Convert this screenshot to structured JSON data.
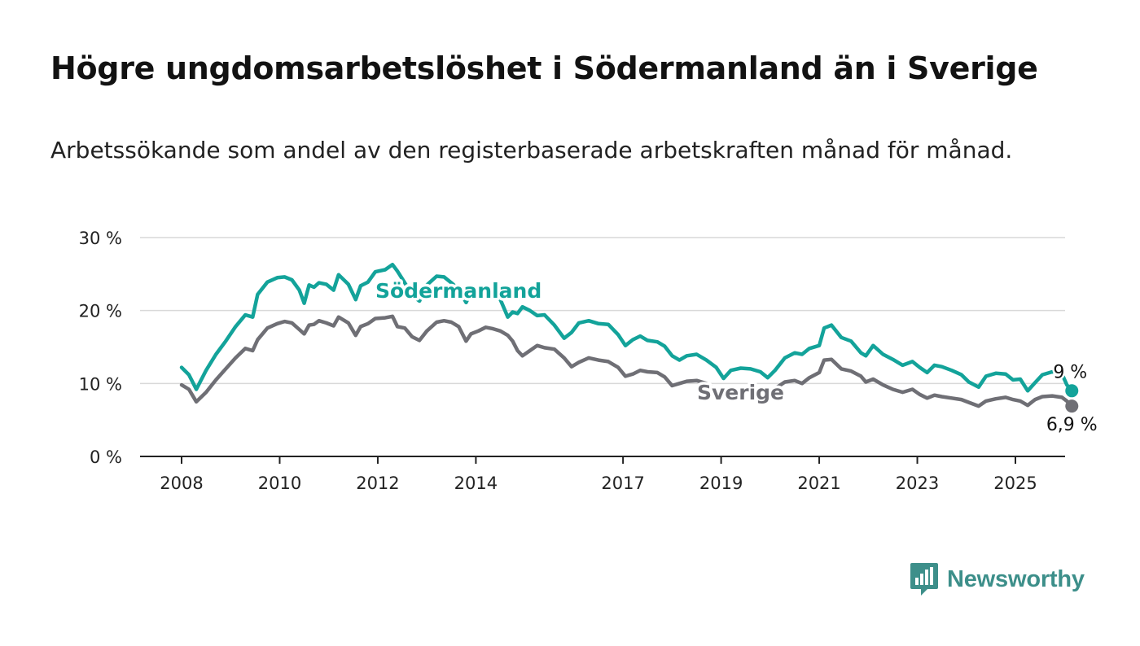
{
  "title": "Högre ungdomsarbetslöshet i Södermanland än i Sverige",
  "subtitle": "Arbetssökande som andel av den registerbaserade arbetskraften månad för månad.",
  "logo": {
    "text": "Newsworthy",
    "icon": "newsworthy-bar-chart-icon"
  },
  "colors": {
    "sodermanland": "#13a39a",
    "sverige": "#6f6f75",
    "grid": "#d9d9d9",
    "axis": "#222222"
  },
  "chart_data": {
    "type": "line",
    "ylim": [
      0,
      30
    ],
    "y_ticks": [
      {
        "value": 0,
        "label": "0 %"
      },
      {
        "value": 10,
        "label": "10 %"
      },
      {
        "value": 20,
        "label": "20 %"
      },
      {
        "value": 30,
        "label": "30 %"
      }
    ],
    "x_range": [
      2007.7,
      2026.2
    ],
    "x_ticks": [
      {
        "value": 2008,
        "label": "2008"
      },
      {
        "value": 2010,
        "label": "2010"
      },
      {
        "value": 2012,
        "label": "2012"
      },
      {
        "value": 2014,
        "label": "2014"
      },
      {
        "value": 2017,
        "label": "2017"
      },
      {
        "value": 2019,
        "label": "2019"
      },
      {
        "value": 2021,
        "label": "2021"
      },
      {
        "value": 2023,
        "label": "2023"
      },
      {
        "value": 2025,
        "label": "2025"
      }
    ],
    "series": [
      {
        "name": "Södermanland",
        "key": "sodermanland",
        "end_label": "9 %",
        "points": [
          [
            2008.0,
            12.2
          ],
          [
            2008.15,
            11.2
          ],
          [
            2008.3,
            9.2
          ],
          [
            2008.5,
            11.8
          ],
          [
            2008.7,
            14.0
          ],
          [
            2008.9,
            15.8
          ],
          [
            2009.1,
            17.8
          ],
          [
            2009.3,
            19.4
          ],
          [
            2009.45,
            19.1
          ],
          [
            2009.55,
            22.2
          ],
          [
            2009.75,
            23.9
          ],
          [
            2009.95,
            24.5
          ],
          [
            2010.1,
            24.6
          ],
          [
            2010.25,
            24.2
          ],
          [
            2010.4,
            22.8
          ],
          [
            2010.5,
            21.0
          ],
          [
            2010.6,
            23.5
          ],
          [
            2010.7,
            23.2
          ],
          [
            2010.8,
            23.8
          ],
          [
            2010.95,
            23.6
          ],
          [
            2011.1,
            22.8
          ],
          [
            2011.2,
            24.9
          ],
          [
            2011.4,
            23.6
          ],
          [
            2011.55,
            21.5
          ],
          [
            2011.65,
            23.4
          ],
          [
            2011.8,
            23.9
          ],
          [
            2011.95,
            25.3
          ],
          [
            2012.15,
            25.6
          ],
          [
            2012.3,
            26.3
          ],
          [
            2012.4,
            25.4
          ],
          [
            2012.55,
            23.8
          ],
          [
            2012.7,
            22.1
          ],
          [
            2012.85,
            21.3
          ],
          [
            2013.0,
            23.5
          ],
          [
            2013.2,
            24.7
          ],
          [
            2013.35,
            24.6
          ],
          [
            2013.5,
            23.8
          ],
          [
            2013.65,
            22.9
          ],
          [
            2013.8,
            21.1
          ],
          [
            2013.9,
            22.5
          ],
          [
            2014.05,
            22.7
          ],
          [
            2014.2,
            21.8
          ],
          [
            2014.35,
            22.2
          ],
          [
            2014.5,
            21.5
          ],
          [
            2014.65,
            19.1
          ],
          [
            2014.75,
            19.8
          ],
          [
            2014.85,
            19.6
          ],
          [
            2014.95,
            20.5
          ],
          [
            2015.1,
            20.0
          ],
          [
            2015.25,
            19.3
          ],
          [
            2015.4,
            19.4
          ],
          [
            2015.6,
            18.0
          ],
          [
            2015.8,
            16.2
          ],
          [
            2015.95,
            17.0
          ],
          [
            2016.1,
            18.3
          ],
          [
            2016.3,
            18.6
          ],
          [
            2016.5,
            18.2
          ],
          [
            2016.7,
            18.1
          ],
          [
            2016.9,
            16.7
          ],
          [
            2017.05,
            15.2
          ],
          [
            2017.2,
            16.0
          ],
          [
            2017.35,
            16.5
          ],
          [
            2017.5,
            15.9
          ],
          [
            2017.7,
            15.7
          ],
          [
            2017.85,
            15.1
          ],
          [
            2018.0,
            13.8
          ],
          [
            2018.15,
            13.2
          ],
          [
            2018.3,
            13.8
          ],
          [
            2018.5,
            14.0
          ],
          [
            2018.7,
            13.2
          ],
          [
            2018.9,
            12.2
          ],
          [
            2019.05,
            10.7
          ],
          [
            2019.2,
            11.8
          ],
          [
            2019.4,
            12.1
          ],
          [
            2019.6,
            12.0
          ],
          [
            2019.8,
            11.6
          ],
          [
            2019.95,
            10.8
          ],
          [
            2020.1,
            11.8
          ],
          [
            2020.3,
            13.5
          ],
          [
            2020.5,
            14.2
          ],
          [
            2020.65,
            14.0
          ],
          [
            2020.8,
            14.8
          ],
          [
            2021.0,
            15.2
          ],
          [
            2021.1,
            17.6
          ],
          [
            2021.25,
            18.0
          ],
          [
            2021.45,
            16.3
          ],
          [
            2021.65,
            15.8
          ],
          [
            2021.85,
            14.2
          ],
          [
            2021.95,
            13.8
          ],
          [
            2022.1,
            15.2
          ],
          [
            2022.3,
            14.0
          ],
          [
            2022.5,
            13.3
          ],
          [
            2022.7,
            12.5
          ],
          [
            2022.9,
            13.0
          ],
          [
            2023.05,
            12.2
          ],
          [
            2023.2,
            11.5
          ],
          [
            2023.35,
            12.5
          ],
          [
            2023.5,
            12.3
          ],
          [
            2023.7,
            11.8
          ],
          [
            2023.9,
            11.2
          ],
          [
            2024.05,
            10.2
          ],
          [
            2024.25,
            9.5
          ],
          [
            2024.4,
            11.0
          ],
          [
            2024.6,
            11.4
          ],
          [
            2024.8,
            11.3
          ],
          [
            2024.95,
            10.5
          ],
          [
            2025.1,
            10.6
          ],
          [
            2025.25,
            9.0
          ],
          [
            2025.4,
            10.1
          ],
          [
            2025.55,
            11.2
          ],
          [
            2025.75,
            11.6
          ],
          [
            2025.95,
            11.3
          ],
          [
            2026.05,
            9.8
          ],
          [
            2026.15,
            9.0
          ]
        ]
      },
      {
        "name": "Sverige",
        "key": "sverige",
        "end_label": "6,9 %",
        "points": [
          [
            2008.0,
            9.8
          ],
          [
            2008.15,
            9.2
          ],
          [
            2008.3,
            7.5
          ],
          [
            2008.5,
            8.8
          ],
          [
            2008.7,
            10.5
          ],
          [
            2008.9,
            12.0
          ],
          [
            2009.1,
            13.5
          ],
          [
            2009.3,
            14.8
          ],
          [
            2009.45,
            14.5
          ],
          [
            2009.55,
            16.0
          ],
          [
            2009.75,
            17.6
          ],
          [
            2009.95,
            18.2
          ],
          [
            2010.1,
            18.5
          ],
          [
            2010.25,
            18.3
          ],
          [
            2010.4,
            17.4
          ],
          [
            2010.5,
            16.8
          ],
          [
            2010.6,
            18.0
          ],
          [
            2010.7,
            18.1
          ],
          [
            2010.8,
            18.6
          ],
          [
            2010.95,
            18.3
          ],
          [
            2011.1,
            17.9
          ],
          [
            2011.2,
            19.1
          ],
          [
            2011.4,
            18.3
          ],
          [
            2011.55,
            16.6
          ],
          [
            2011.65,
            17.8
          ],
          [
            2011.8,
            18.2
          ],
          [
            2011.95,
            18.9
          ],
          [
            2012.15,
            19.0
          ],
          [
            2012.3,
            19.2
          ],
          [
            2012.4,
            17.8
          ],
          [
            2012.55,
            17.6
          ],
          [
            2012.7,
            16.4
          ],
          [
            2012.85,
            15.9
          ],
          [
            2013.0,
            17.2
          ],
          [
            2013.2,
            18.4
          ],
          [
            2013.35,
            18.6
          ],
          [
            2013.5,
            18.4
          ],
          [
            2013.65,
            17.8
          ],
          [
            2013.8,
            15.8
          ],
          [
            2013.9,
            16.8
          ],
          [
            2014.05,
            17.2
          ],
          [
            2014.2,
            17.7
          ],
          [
            2014.35,
            17.5
          ],
          [
            2014.5,
            17.2
          ],
          [
            2014.65,
            16.6
          ],
          [
            2014.75,
            15.8
          ],
          [
            2014.85,
            14.5
          ],
          [
            2014.95,
            13.8
          ],
          [
            2015.1,
            14.5
          ],
          [
            2015.25,
            15.2
          ],
          [
            2015.4,
            14.9
          ],
          [
            2015.6,
            14.7
          ],
          [
            2015.8,
            13.5
          ],
          [
            2015.95,
            12.3
          ],
          [
            2016.1,
            12.9
          ],
          [
            2016.3,
            13.5
          ],
          [
            2016.5,
            13.2
          ],
          [
            2016.7,
            13.0
          ],
          [
            2016.9,
            12.2
          ],
          [
            2017.05,
            11.0
          ],
          [
            2017.2,
            11.3
          ],
          [
            2017.35,
            11.8
          ],
          [
            2017.5,
            11.6
          ],
          [
            2017.7,
            11.5
          ],
          [
            2017.85,
            10.9
          ],
          [
            2018.0,
            9.7
          ],
          [
            2018.15,
            10.0
          ],
          [
            2018.3,
            10.3
          ],
          [
            2018.5,
            10.4
          ],
          [
            2018.7,
            10.0
          ],
          [
            2018.9,
            9.0
          ],
          [
            2019.05,
            8.3
          ],
          [
            2019.2,
            8.8
          ],
          [
            2019.4,
            9.2
          ],
          [
            2019.6,
            9.4
          ],
          [
            2019.8,
            9.2
          ],
          [
            2019.95,
            8.8
          ],
          [
            2020.1,
            9.3
          ],
          [
            2020.3,
            10.2
          ],
          [
            2020.5,
            10.4
          ],
          [
            2020.65,
            10.0
          ],
          [
            2020.8,
            10.8
          ],
          [
            2021.0,
            11.5
          ],
          [
            2021.1,
            13.2
          ],
          [
            2021.25,
            13.3
          ],
          [
            2021.45,
            12.0
          ],
          [
            2021.65,
            11.7
          ],
          [
            2021.85,
            11.0
          ],
          [
            2021.95,
            10.2
          ],
          [
            2022.1,
            10.6
          ],
          [
            2022.3,
            9.8
          ],
          [
            2022.5,
            9.2
          ],
          [
            2022.7,
            8.8
          ],
          [
            2022.9,
            9.2
          ],
          [
            2023.05,
            8.5
          ],
          [
            2023.2,
            8.0
          ],
          [
            2023.35,
            8.4
          ],
          [
            2023.5,
            8.2
          ],
          [
            2023.7,
            8.0
          ],
          [
            2023.9,
            7.8
          ],
          [
            2024.05,
            7.4
          ],
          [
            2024.25,
            6.9
          ],
          [
            2024.4,
            7.6
          ],
          [
            2024.6,
            7.9
          ],
          [
            2024.8,
            8.1
          ],
          [
            2024.95,
            7.8
          ],
          [
            2025.1,
            7.6
          ],
          [
            2025.25,
            7.0
          ],
          [
            2025.4,
            7.8
          ],
          [
            2025.55,
            8.2
          ],
          [
            2025.75,
            8.3
          ],
          [
            2025.95,
            8.1
          ],
          [
            2026.05,
            7.6
          ],
          [
            2026.15,
            6.9
          ]
        ]
      }
    ]
  }
}
